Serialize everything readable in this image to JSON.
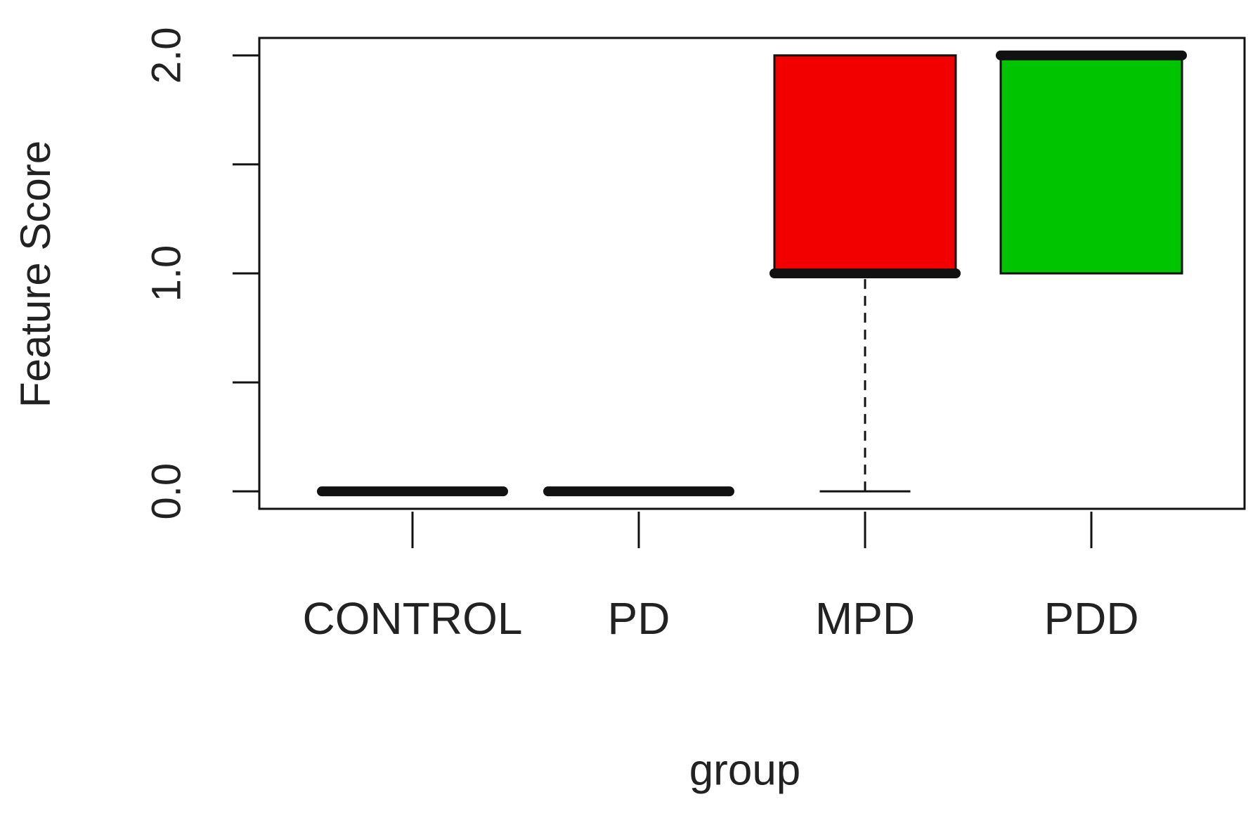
{
  "chart_data": {
    "type": "box",
    "x_label": "group",
    "y_label": "Feature Score",
    "categories": [
      "CONTROL",
      "PD",
      "MPD",
      "PDD"
    ],
    "min": [
      0,
      0,
      0,
      1
    ],
    "q1": [
      0,
      0,
      1,
      1
    ],
    "median": [
      0,
      0,
      1,
      2
    ],
    "q3": [
      0,
      0,
      2,
      2
    ],
    "max": [
      0,
      0,
      2,
      2
    ],
    "colors": [
      "#ffffff",
      "#ffffff",
      "#f20000",
      "#00c400"
    ],
    "ylim": [
      -0.08,
      2.08
    ],
    "yticks": [
      {
        "value": 0,
        "label": "0.0"
      },
      {
        "value": 0.5,
        "label": null
      },
      {
        "value": 1,
        "label": "1.0"
      },
      {
        "value": 1.5,
        "label": null
      },
      {
        "value": 2,
        "label": "2.0"
      }
    ]
  }
}
